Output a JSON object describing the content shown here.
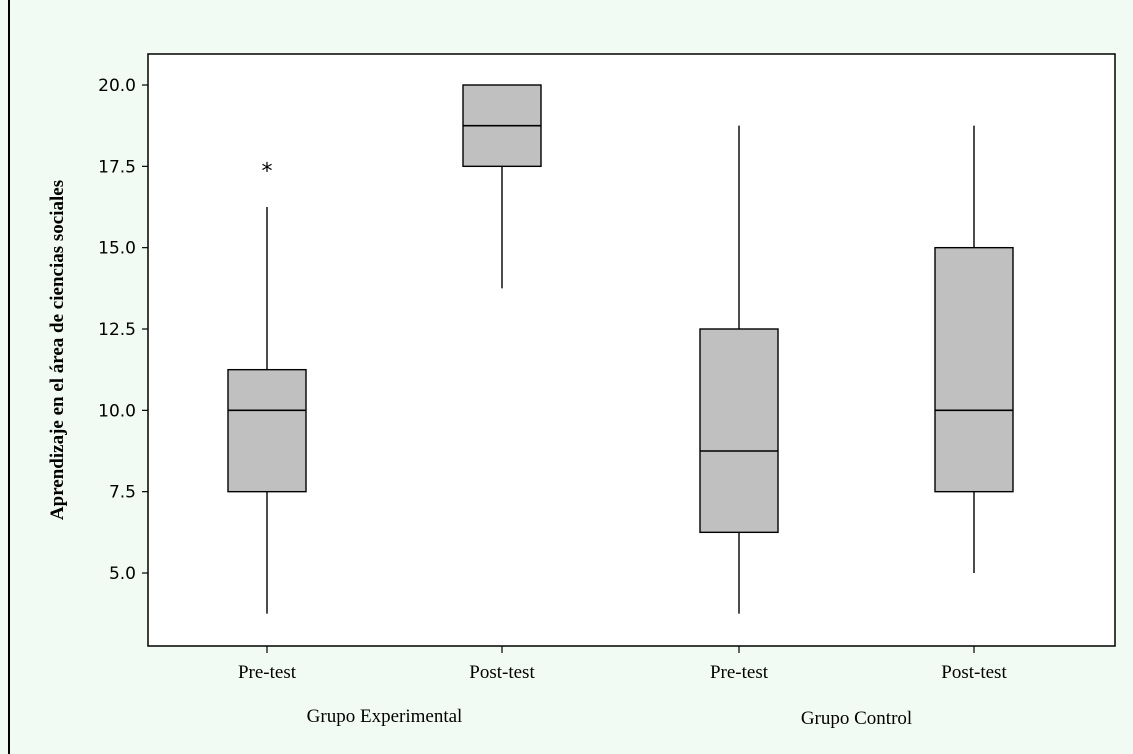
{
  "chart_data": {
    "type": "boxplot",
    "ylabel": "Aprendizaje en el área de ciencias sociales",
    "ylim": [
      2.9,
      21.0
    ],
    "yticks": [
      5.0,
      7.5,
      10.0,
      12.5,
      15.0,
      17.5,
      20.0
    ],
    "ytick_labels": [
      "5.0",
      "7.5",
      "10.0",
      "12.5",
      "15.0",
      "17.5",
      "20.0"
    ],
    "grid": false,
    "box_color": "#c0c0c0",
    "plot_background": "#ffffff",
    "page_background": "#f2fbf3",
    "categories": [
      "Pre-test",
      "Post-test",
      "Pre-test",
      "Post-test"
    ],
    "groups": [
      {
        "label": "Grupo Experimental",
        "categories": [
          0,
          1
        ]
      },
      {
        "label": "Grupo Control",
        "categories": [
          2,
          3
        ]
      }
    ],
    "boxes": [
      {
        "category": "Pre-test",
        "group": "Grupo Experimental",
        "whisker_low": 3.75,
        "q1": 7.5,
        "median": 10.0,
        "q3": 11.25,
        "whisker_high": 16.25,
        "outliers": [
          17.5
        ]
      },
      {
        "category": "Post-test",
        "group": "Grupo Experimental",
        "whisker_low": 13.75,
        "q1": 17.5,
        "median": 18.75,
        "q3": 20.0,
        "whisker_high": 20.0,
        "outliers": []
      },
      {
        "category": "Pre-test",
        "group": "Grupo Control",
        "whisker_low": 3.75,
        "q1": 6.25,
        "median": 8.75,
        "q3": 12.5,
        "whisker_high": 18.75,
        "outliers": []
      },
      {
        "category": "Post-test",
        "group": "Grupo Control",
        "whisker_low": 5.0,
        "q1": 7.5,
        "median": 10.0,
        "q3": 15.0,
        "whisker_high": 18.75,
        "outliers": []
      }
    ],
    "outlier_symbol": "*"
  }
}
